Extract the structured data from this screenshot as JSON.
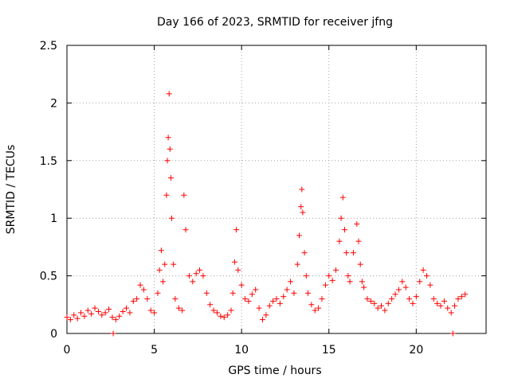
{
  "chart_data": {
    "type": "scatter",
    "title": "Day 166 of 2023, SRMTID for receiver jfng",
    "xlabel": "GPS time / hours",
    "ylabel": "SRMTID / TECUs",
    "xlim": [
      0,
      24
    ],
    "ylim": [
      0,
      2.5
    ],
    "xticks": [
      0,
      5,
      10,
      15,
      20
    ],
    "yticks": [
      0,
      0.5,
      1,
      1.5,
      2,
      2.5
    ],
    "xtick_labels": [
      "0",
      "5",
      "10",
      "15",
      "20"
    ],
    "ytick_labels": [
      "0",
      "0.5",
      "1",
      "1.5",
      "2",
      "2.5"
    ],
    "grid": true,
    "marker": "plus",
    "color": "#ff0000",
    "series": [
      {
        "name": "SRMTID",
        "x": [
          0.0,
          0.2,
          0.4,
          0.6,
          0.8,
          1.0,
          1.2,
          1.4,
          1.6,
          1.8,
          2.0,
          2.2,
          2.4,
          2.6,
          2.8,
          3.0,
          3.2,
          3.4,
          3.6,
          3.8,
          4.0,
          4.2,
          4.4,
          4.6,
          4.8,
          5.0,
          5.2,
          5.3,
          5.4,
          5.5,
          5.6,
          5.7,
          5.75,
          5.8,
          5.85,
          5.9,
          5.95,
          6.0,
          6.1,
          6.2,
          6.4,
          6.6,
          6.7,
          6.8,
          7.0,
          7.2,
          7.4,
          7.6,
          7.8,
          8.0,
          8.2,
          8.4,
          8.6,
          8.8,
          9.0,
          9.2,
          9.4,
          9.5,
          9.6,
          9.7,
          9.8,
          10.0,
          10.2,
          10.4,
          10.6,
          10.8,
          11.0,
          11.2,
          11.4,
          11.6,
          11.8,
          12.0,
          12.2,
          12.4,
          12.6,
          12.8,
          13.0,
          13.2,
          13.3,
          13.4,
          13.45,
          13.5,
          13.6,
          13.7,
          13.8,
          14.0,
          14.2,
          14.4,
          14.6,
          14.8,
          15.0,
          15.2,
          15.4,
          15.6,
          15.7,
          15.8,
          15.9,
          16.0,
          16.1,
          16.2,
          16.4,
          16.6,
          16.7,
          16.8,
          16.9,
          17.0,
          17.2,
          17.4,
          17.6,
          17.8,
          18.0,
          18.2,
          18.4,
          18.6,
          18.8,
          19.0,
          19.2,
          19.4,
          19.6,
          19.8,
          20.0,
          20.2,
          20.4,
          20.6,
          20.8,
          21.0,
          21.2,
          21.4,
          21.6,
          21.8,
          22.0,
          22.2,
          22.4,
          22.6,
          22.8,
          2.65,
          22.1
        ],
        "y": [
          0.14,
          0.12,
          0.16,
          0.13,
          0.18,
          0.15,
          0.2,
          0.17,
          0.22,
          0.19,
          0.16,
          0.18,
          0.21,
          0.14,
          0.12,
          0.15,
          0.19,
          0.22,
          0.18,
          0.28,
          0.3,
          0.42,
          0.38,
          0.3,
          0.2,
          0.18,
          0.35,
          0.55,
          0.72,
          0.45,
          0.6,
          1.2,
          1.5,
          1.7,
          2.08,
          1.6,
          1.35,
          1.0,
          0.6,
          0.3,
          0.22,
          0.2,
          1.2,
          0.9,
          0.5,
          0.45,
          0.52,
          0.55,
          0.5,
          0.35,
          0.25,
          0.2,
          0.18,
          0.15,
          0.14,
          0.16,
          0.2,
          0.35,
          0.62,
          0.9,
          0.55,
          0.42,
          0.3,
          0.28,
          0.34,
          0.38,
          0.22,
          0.12,
          0.16,
          0.24,
          0.28,
          0.3,
          0.26,
          0.32,
          0.38,
          0.45,
          0.35,
          0.6,
          0.85,
          1.1,
          1.25,
          1.05,
          0.7,
          0.5,
          0.35,
          0.25,
          0.2,
          0.22,
          0.3,
          0.42,
          0.5,
          0.46,
          0.55,
          0.8,
          1.0,
          1.18,
          0.9,
          0.7,
          0.5,
          0.45,
          0.7,
          0.95,
          0.8,
          0.6,
          0.45,
          0.4,
          0.3,
          0.28,
          0.26,
          0.22,
          0.24,
          0.2,
          0.26,
          0.3,
          0.34,
          0.38,
          0.45,
          0.4,
          0.3,
          0.26,
          0.32,
          0.45,
          0.55,
          0.5,
          0.42,
          0.3,
          0.26,
          0.24,
          0.28,
          0.22,
          0.18,
          0.24,
          0.3,
          0.32,
          0.34,
          0.0,
          0.0
        ]
      }
    ]
  }
}
